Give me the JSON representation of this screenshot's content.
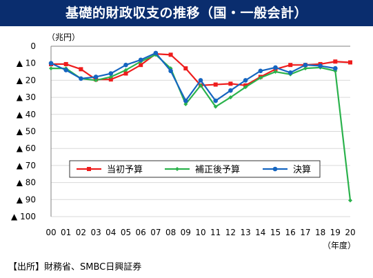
{
  "title": "基礎的財政収支の推移（国・一般会計）",
  "unit_label": "（兆円）",
  "source": "【出所】財務省、SMBC日興証券",
  "chart_data": {
    "type": "line",
    "title": "基礎的財政収支の推移（国・一般会計）",
    "ylabel": "（兆円）",
    "xlabel": "（年度）",
    "ylim": [
      0,
      100
    ],
    "y_inverted": true,
    "y_ticks": [
      {
        "v": 0,
        "label": "0"
      },
      {
        "v": 10,
        "label": "▲ 10"
      },
      {
        "v": 20,
        "label": "▲ 20"
      },
      {
        "v": 30,
        "label": "▲ 30"
      },
      {
        "v": 40,
        "label": "▲ 40"
      },
      {
        "v": 50,
        "label": "▲ 50"
      },
      {
        "v": 60,
        "label": "▲ 60"
      },
      {
        "v": 70,
        "label": "▲ 70"
      },
      {
        "v": 80,
        "label": "▲ 80"
      },
      {
        "v": 90,
        "label": "▲ 90"
      },
      {
        "v": 100,
        "label": "▲ 100"
      }
    ],
    "categories": [
      "00",
      "01",
      "02",
      "03",
      "04",
      "05",
      "06",
      "07",
      "08",
      "09",
      "10",
      "11",
      "12",
      "13",
      "14",
      "15",
      "16",
      "17",
      "18",
      "19",
      "20"
    ],
    "grid": true,
    "legend_position": "inside-lower-middle",
    "series": [
      {
        "name": "当初予算",
        "color": "#ee1c1c",
        "marker": "square",
        "values": [
          10.5,
          10.5,
          13.5,
          19.5,
          19.5,
          16.0,
          11.0,
          4.5,
          5.0,
          13.0,
          23.0,
          22.5,
          22.0,
          23.0,
          18.0,
          13.5,
          11.0,
          11.0,
          10.5,
          9.0,
          9.5
        ]
      },
      {
        "name": "補正後予算",
        "color": "#2bb24c",
        "marker": "diamond",
        "values": [
          13.0,
          13.0,
          19.0,
          20.0,
          18.0,
          14.0,
          9.0,
          5.0,
          13.0,
          34.0,
          23.0,
          35.5,
          30.0,
          24.0,
          18.5,
          15.0,
          16.5,
          13.0,
          12.5,
          14.5,
          90.5
        ]
      },
      {
        "name": "決算",
        "color": "#1565c0",
        "marker": "circle",
        "values": [
          10.0,
          14.0,
          19.0,
          18.0,
          16.0,
          11.0,
          8.0,
          4.0,
          14.5,
          32.0,
          20.0,
          32.0,
          26.0,
          20.0,
          14.5,
          12.5,
          15.5,
          11.0,
          11.5,
          13.0,
          null
        ]
      }
    ]
  }
}
